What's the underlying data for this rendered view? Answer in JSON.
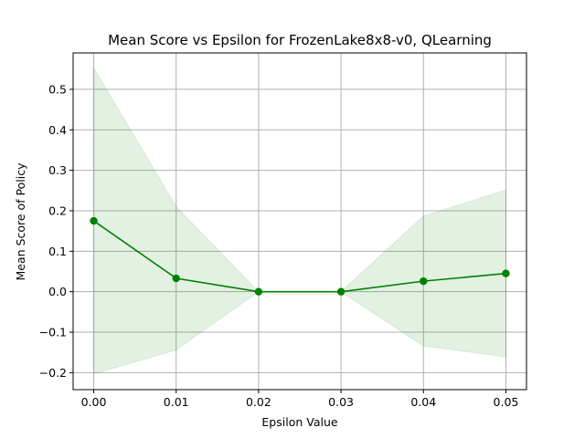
{
  "chart_data": {
    "type": "line",
    "title": "Mean Score vs Epsilon for FrozenLake8x8-v0, QLearning",
    "xlabel": "Epsilon Value",
    "ylabel": "Mean Score of Policy",
    "x": [
      0.0,
      0.01,
      0.02,
      0.03,
      0.04,
      0.05
    ],
    "x_tick_labels": [
      "0.00",
      "0.01",
      "0.02",
      "0.03",
      "0.04",
      "0.05"
    ],
    "y_ticks": [
      -0.2,
      -0.1,
      0.0,
      0.1,
      0.2,
      0.3,
      0.4,
      0.5
    ],
    "y_tick_labels": [
      "−0.2",
      "−0.1",
      "0.0",
      "0.1",
      "0.2",
      "0.3",
      "0.4",
      "0.5"
    ],
    "xlim": [
      -0.0025,
      0.0525
    ],
    "ylim": [
      -0.242,
      0.59
    ],
    "grid": true,
    "series": [
      {
        "values": [
          0.175,
          0.033,
          0.0,
          0.0,
          0.026,
          0.045
        ],
        "band_upper": [
          0.553,
          0.21,
          0.0,
          0.0,
          0.187,
          0.251
        ],
        "band_lower": [
          -0.203,
          -0.144,
          0.0,
          0.0,
          -0.134,
          -0.161
        ],
        "color": "#008000",
        "band_color": "#008000"
      }
    ]
  }
}
